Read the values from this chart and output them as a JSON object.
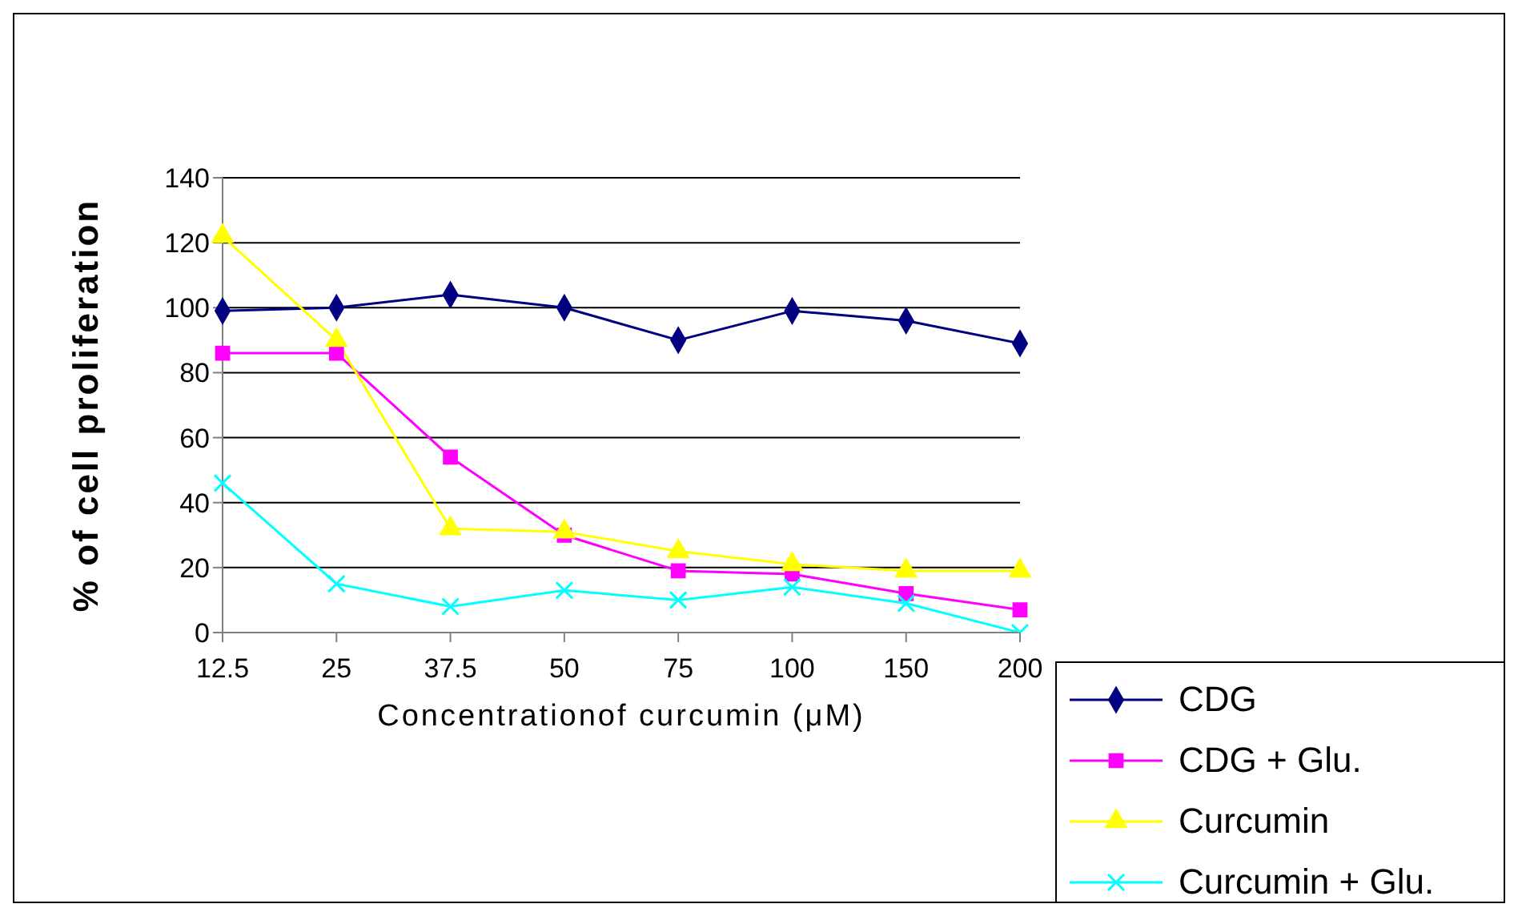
{
  "chart_data": {
    "type": "line",
    "xlabel": "Concentrationof curcumin (μM)",
    "ylabel": "% of cell proliferation",
    "categories": [
      "12.5",
      "25",
      "37.5",
      "50",
      "75",
      "100",
      "150",
      "200"
    ],
    "ylim": [
      0,
      140
    ],
    "yticks": [
      0,
      20,
      40,
      60,
      80,
      100,
      120,
      140
    ],
    "grid": "y",
    "legend": "bottom right",
    "line_style": "solid",
    "series": [
      {
        "name": "CDG",
        "color": "#000080",
        "marker": "diamond",
        "values": [
          99,
          100,
          104,
          100,
          90,
          99,
          96,
          89
        ]
      },
      {
        "name": "CDG + Glu.",
        "color": "#ff00ff",
        "marker": "square",
        "values": [
          86,
          86,
          54,
          30,
          19,
          18,
          12,
          7
        ]
      },
      {
        "name": "Curcumin",
        "color": "#ffff00",
        "marker": "triangle",
        "values": [
          122,
          90,
          32,
          31,
          25,
          21,
          19,
          19
        ]
      },
      {
        "name": "Curcumin + Glu.",
        "color": "#00ffff",
        "marker": "cross",
        "values": [
          46,
          15,
          8,
          13,
          10,
          14,
          9,
          0
        ]
      }
    ]
  }
}
